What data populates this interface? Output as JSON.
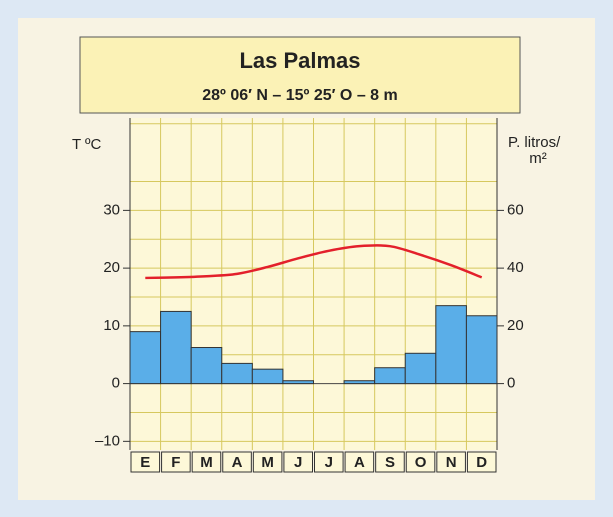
{
  "chart_data": {
    "type": "climograph",
    "title": "Las Palmas",
    "subtitle": "28º 06′ N – 15º 25′ O – 8 m",
    "y_label": "T ºC",
    "y2_label": [
      "P. litros/",
      "m²"
    ],
    "categories": [
      "E",
      "F",
      "M",
      "A",
      "M",
      "J",
      "J",
      "A",
      "S",
      "O",
      "N",
      "D"
    ],
    "series": [
      {
        "type": "bar",
        "axis": "y2",
        "color": "#5aaee8",
        "values": [
          18,
          25,
          12.5,
          7,
          5,
          1,
          0,
          1,
          5.5,
          10.5,
          27,
          23.5
        ]
      },
      {
        "type": "line",
        "color": "#e3202b",
        "values": [
          18.3,
          18.4,
          18.6,
          19,
          20.2,
          21.7,
          23,
          23.8,
          23.8,
          22.3,
          20.5,
          18.4
        ]
      }
    ],
    "ylim": [
      -11.5,
      46
    ],
    "yticks": [
      {
        "value": -10,
        "label": "–10"
      },
      0,
      10,
      20,
      30
    ],
    "y_minor_ticks": [
      -5,
      5,
      15,
      25,
      35,
      45
    ],
    "y2lim": [
      -23,
      92
    ],
    "y2ticks": [
      0,
      20,
      40,
      60
    ],
    "grid": true
  }
}
